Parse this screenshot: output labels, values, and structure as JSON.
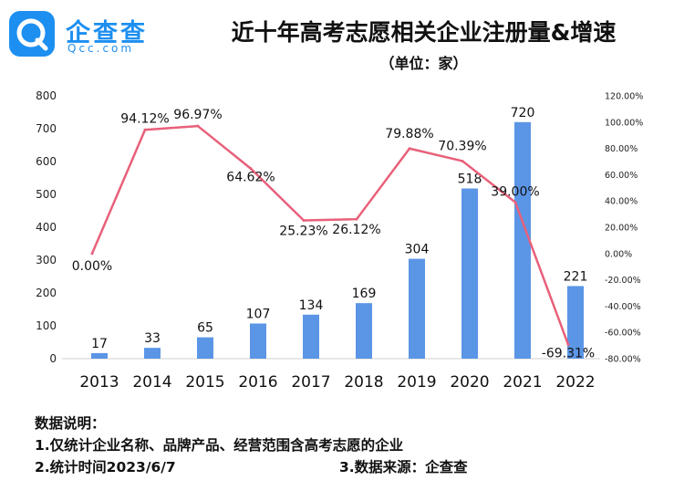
{
  "logo": {
    "text_cn": "企查查",
    "text_en": "Qcc.com"
  },
  "title": "近十年高考志愿相关企业注册量&增速",
  "subtitle": "（单位：家）",
  "colors": {
    "bar": "#5b95e6",
    "line": "#e8607a",
    "logo": "#1d8ff0",
    "text": "#111111"
  },
  "chart_data": {
    "type": "bar+line",
    "categories": [
      "2013",
      "2014",
      "2015",
      "2016",
      "2017",
      "2018",
      "2019",
      "2020",
      "2021",
      "2022"
    ],
    "series": [
      {
        "name": "注册量",
        "type": "bar",
        "axis": "left",
        "values": [
          17,
          33,
          65,
          107,
          134,
          169,
          304,
          518,
          720,
          221
        ],
        "labels": [
          "17",
          "33",
          "65",
          "107",
          "134",
          "169",
          "304",
          "518",
          "720",
          "221"
        ]
      },
      {
        "name": "增速",
        "type": "line",
        "axis": "right",
        "values": [
          0.0,
          94.12,
          96.97,
          64.62,
          25.23,
          26.12,
          79.88,
          70.39,
          39.0,
          -69.31
        ],
        "labels": [
          "0.00%",
          "94.12%",
          "96.97%",
          "64.62%",
          "25.23%",
          "26.12%",
          "79.88%",
          "70.39%",
          "39.00%",
          "-69.31%"
        ]
      }
    ],
    "y_left": {
      "min": 0,
      "max": 800,
      "ticks": [
        "0",
        "100",
        "200",
        "300",
        "400",
        "500",
        "600",
        "700",
        "800"
      ]
    },
    "y_right": {
      "min": -80,
      "max": 120,
      "ticks": [
        "-80.00%",
        "-60.00%",
        "-40.00%",
        "-20.00%",
        "0.00%",
        "20.00%",
        "40.00%",
        "60.00%",
        "80.00%",
        "100.00%",
        "120.00%"
      ]
    },
    "grid": false,
    "legend": "none"
  },
  "notes": {
    "heading": "数据说明：",
    "line1": "1.仅统计企业名称、品牌产品、经营范围含高考志愿的企业",
    "line2": "2.统计时间2023/6/7",
    "line3": "3.数据来源：企查查"
  }
}
